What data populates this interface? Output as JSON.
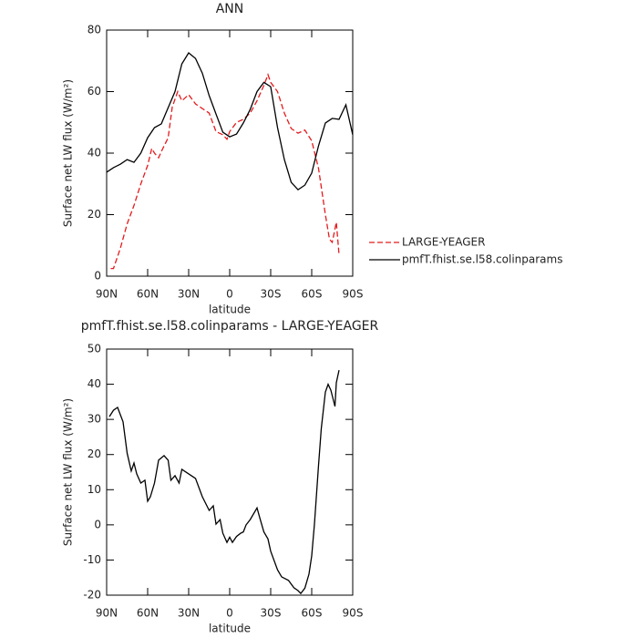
{
  "chart_data": [
    {
      "type": "line",
      "title": "ANN",
      "xlabel": "latitude",
      "ylabel": "Surface net LW flux (W/m²)",
      "xlim": [
        90,
        -90
      ],
      "xticks": [
        {
          "value": 90,
          "label": "90N"
        },
        {
          "value": 60,
          "label": "60N"
        },
        {
          "value": 30,
          "label": "30N"
        },
        0,
        {
          "value": -30,
          "label": "30S"
        },
        {
          "value": -60,
          "label": "60S"
        },
        {
          "value": -90,
          "label": "90S"
        }
      ],
      "ylim": [
        0,
        80
      ],
      "yticks": [
        0,
        20,
        40,
        60,
        80
      ],
      "legend": "right",
      "series": [
        {
          "name": "LARGE-YEAGER",
          "color": "#e41a1c",
          "dash": true,
          "x": [
            87,
            85,
            80,
            75,
            70,
            65,
            60,
            57,
            55,
            52,
            50,
            45,
            42,
            38,
            35,
            30,
            25,
            20,
            15,
            10,
            5,
            2,
            0,
            -5,
            -10,
            -15,
            -20,
            -25,
            -28,
            -30,
            -35,
            -40,
            -45,
            -50,
            -55,
            -60,
            -65,
            -70,
            -73,
            -75,
            -78,
            -80
          ],
          "values": [
            2.5,
            2.5,
            9,
            17,
            23,
            30,
            36,
            41.5,
            40,
            38.5,
            40.5,
            45,
            55,
            60,
            57,
            59,
            56,
            54.5,
            53,
            47,
            46,
            44.5,
            47,
            50,
            51,
            53,
            57,
            62,
            65.5,
            63,
            60,
            53,
            48,
            46.5,
            47.5,
            44,
            35,
            20,
            12,
            11,
            17.5,
            7
          ]
        },
        {
          "name": "pmfT.fhist.se.l58.colinparams",
          "color": "#000000",
          "dash": false,
          "x": [
            90,
            85,
            80,
            75,
            70,
            65,
            60,
            55,
            50,
            45,
            40,
            35,
            30,
            25,
            20,
            15,
            10,
            5,
            0,
            -5,
            -10,
            -15,
            -20,
            -25,
            -30,
            -35,
            -40,
            -45,
            -50,
            -55,
            -60,
            -65,
            -70,
            -75,
            -80,
            -85,
            -90
          ],
          "values": [
            33.8,
            35.3,
            36.4,
            37.9,
            37,
            40,
            45,
            48.3,
            49.5,
            54.8,
            60,
            69,
            72.6,
            70.8,
            66,
            58.7,
            52.7,
            46.8,
            45.3,
            46.2,
            49.8,
            54.2,
            60,
            63,
            61.6,
            48.3,
            37.9,
            30.5,
            28.1,
            29.6,
            33.5,
            42.4,
            49.8,
            51.3,
            51,
            55.7,
            46
          ]
        }
      ]
    },
    {
      "type": "line",
      "title": "pmfT.fhist.se.l58.colinparams - LARGE-YEAGER",
      "xlabel": "latitude",
      "ylabel": "Surface net LW flux (W/m²)",
      "xlim": [
        90,
        -90
      ],
      "xticks": [
        {
          "value": 90,
          "label": "90N"
        },
        {
          "value": 60,
          "label": "60N"
        },
        {
          "value": 30,
          "label": "30N"
        },
        0,
        {
          "value": -30,
          "label": "30S"
        },
        {
          "value": -60,
          "label": "60S"
        },
        {
          "value": -90,
          "label": "90S"
        }
      ],
      "ylim": [
        -20,
        50
      ],
      "yticks": [
        -20,
        -10,
        0,
        10,
        20,
        30,
        40,
        50
      ],
      "series": [
        {
          "color": "#000000",
          "dash": false,
          "x": [
            88,
            85,
            82,
            78,
            75,
            72,
            70,
            68,
            65,
            62,
            60,
            58,
            55,
            52,
            48,
            45,
            43,
            40,
            37,
            35,
            30,
            25,
            20,
            15,
            12,
            10,
            7,
            5,
            2,
            0,
            -2,
            -5,
            -8,
            -10,
            -12,
            -15,
            -20,
            -22,
            -25,
            -28,
            -30,
            -35,
            -38,
            -43,
            -47,
            -50,
            -52,
            -55,
            -58,
            -60,
            -62,
            -65,
            -67,
            -70,
            -72,
            -74,
            -77,
            -78,
            -80
          ],
          "values": [
            30.8,
            32.6,
            33.4,
            29.3,
            20.4,
            15.3,
            17.6,
            14.5,
            11.9,
            12.7,
            6.7,
            8,
            11.9,
            18.4,
            19.7,
            18.4,
            12.7,
            14,
            11.9,
            15.8,
            14.5,
            13.2,
            8,
            4.1,
            5.4,
            0.2,
            1.5,
            -2.4,
            -5,
            -3.5,
            -5,
            -3.3,
            -2.4,
            -2,
            0,
            1.5,
            4.8,
            2,
            -2,
            -4,
            -7.5,
            -12.8,
            -14.8,
            -15.8,
            -17.9,
            -18.7,
            -19.5,
            -18,
            -14,
            -8.8,
            0.2,
            17,
            27.4,
            37.8,
            40,
            38.3,
            33.7,
            40.4,
            44
          ]
        }
      ]
    }
  ]
}
